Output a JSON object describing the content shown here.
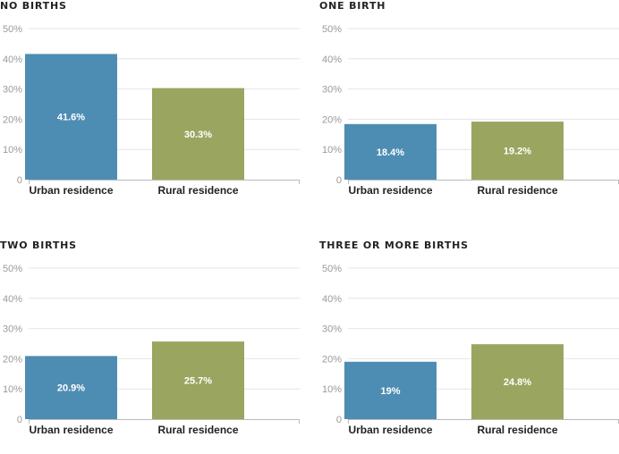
{
  "colors": {
    "urban": "#4e8db3",
    "rural": "#9aa560",
    "grid": "#e4e4e4",
    "axis": "#bbbbbb"
  },
  "chart_data": [
    {
      "type": "bar",
      "title": "NO BIRTHS",
      "categories": [
        "Urban residence",
        "Rural residence"
      ],
      "values": [
        41.6,
        30.3
      ],
      "value_labels": [
        "41.6%",
        "30.3%"
      ],
      "ylim": [
        0,
        50
      ],
      "yticks": [
        0,
        10,
        20,
        30,
        40,
        50
      ],
      "ytick_labels": [
        "0",
        "10%",
        "20%",
        "30%",
        "40%",
        "50%"
      ],
      "grid": true
    },
    {
      "type": "bar",
      "title": "ONE BIRTH",
      "categories": [
        "Urban residence",
        "Rural residence"
      ],
      "values": [
        18.4,
        19.2
      ],
      "value_labels": [
        "18.4%",
        "19.2%"
      ],
      "ylim": [
        0,
        50
      ],
      "yticks": [
        0,
        10,
        20,
        30,
        40,
        50
      ],
      "ytick_labels": [
        "0",
        "10%",
        "20%",
        "30%",
        "40%",
        "50%"
      ],
      "grid": true
    },
    {
      "type": "bar",
      "title": "TWO BIRTHS",
      "categories": [
        "Urban residence",
        "Rural residence"
      ],
      "values": [
        20.9,
        25.7
      ],
      "value_labels": [
        "20.9%",
        "25.7%"
      ],
      "ylim": [
        0,
        50
      ],
      "yticks": [
        0,
        10,
        20,
        30,
        40,
        50
      ],
      "ytick_labels": [
        "0",
        "10%",
        "20%",
        "30%",
        "40%",
        "50%"
      ],
      "grid": true
    },
    {
      "type": "bar",
      "title": "THREE OR MORE BIRTHS",
      "categories": [
        "Urban residence",
        "Rural residence"
      ],
      "values": [
        19,
        24.8
      ],
      "value_labels": [
        "19%",
        "24.8%"
      ],
      "ylim": [
        0,
        50
      ],
      "yticks": [
        0,
        10,
        20,
        30,
        40,
        50
      ],
      "ytick_labels": [
        "0",
        "10%",
        "20%",
        "30%",
        "40%",
        "50%"
      ],
      "grid": true
    }
  ]
}
